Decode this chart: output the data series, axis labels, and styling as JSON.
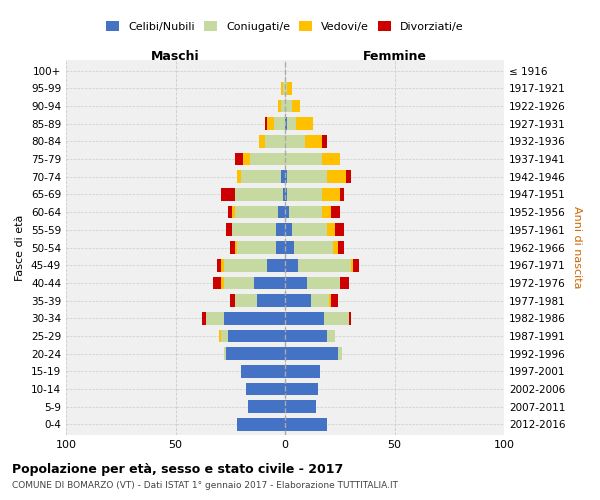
{
  "age_groups": [
    "0-4",
    "5-9",
    "10-14",
    "15-19",
    "20-24",
    "25-29",
    "30-34",
    "35-39",
    "40-44",
    "45-49",
    "50-54",
    "55-59",
    "60-64",
    "65-69",
    "70-74",
    "75-79",
    "80-84",
    "85-89",
    "90-94",
    "95-99",
    "100+"
  ],
  "birth_years": [
    "2012-2016",
    "2007-2011",
    "2002-2006",
    "1997-2001",
    "1992-1996",
    "1987-1991",
    "1982-1986",
    "1977-1981",
    "1972-1976",
    "1967-1971",
    "1962-1966",
    "1957-1961",
    "1952-1956",
    "1947-1951",
    "1942-1946",
    "1937-1941",
    "1932-1936",
    "1927-1931",
    "1922-1926",
    "1917-1921",
    "≤ 1916"
  ],
  "male": {
    "celibi": [
      22,
      17,
      18,
      20,
      27,
      26,
      28,
      13,
      14,
      8,
      4,
      4,
      3,
      1,
      2,
      0,
      0,
      0,
      0,
      0,
      0
    ],
    "coniugati": [
      0,
      0,
      0,
      0,
      1,
      3,
      8,
      10,
      14,
      20,
      18,
      20,
      20,
      22,
      18,
      16,
      9,
      5,
      2,
      1,
      0
    ],
    "vedovi": [
      0,
      0,
      0,
      0,
      0,
      1,
      0,
      0,
      1,
      1,
      1,
      0,
      1,
      0,
      2,
      3,
      3,
      3,
      1,
      1,
      0
    ],
    "divorziati": [
      0,
      0,
      0,
      0,
      0,
      0,
      2,
      2,
      4,
      2,
      2,
      3,
      2,
      6,
      0,
      4,
      0,
      1,
      0,
      0,
      0
    ]
  },
  "female": {
    "nubili": [
      19,
      14,
      15,
      16,
      24,
      19,
      18,
      12,
      10,
      6,
      4,
      3,
      2,
      1,
      1,
      0,
      0,
      1,
      0,
      0,
      0
    ],
    "coniugate": [
      0,
      0,
      0,
      0,
      2,
      4,
      11,
      8,
      15,
      24,
      18,
      16,
      15,
      16,
      18,
      17,
      9,
      4,
      3,
      1,
      0
    ],
    "vedove": [
      0,
      0,
      0,
      0,
      0,
      0,
      0,
      1,
      0,
      1,
      2,
      4,
      4,
      8,
      9,
      8,
      8,
      8,
      4,
      2,
      0
    ],
    "divorziate": [
      0,
      0,
      0,
      0,
      0,
      0,
      1,
      3,
      4,
      3,
      3,
      4,
      4,
      2,
      2,
      0,
      2,
      0,
      0,
      0,
      0
    ]
  },
  "colors": {
    "celibi": "#4472c4",
    "coniugati": "#c5d9a0",
    "vedovi": "#ffc000",
    "divorziati": "#cc0000"
  },
  "title": "Popolazione per età, sesso e stato civile - 2017",
  "subtitle": "COMUNE DI BOMARZO (VT) - Dati ISTAT 1° gennaio 2017 - Elaborazione TUTTITALIA.IT",
  "xlabel_left": "Maschi",
  "xlabel_right": "Femmine",
  "ylabel_left": "Fasce di età",
  "ylabel_right": "Anni di nascita",
  "legend_labels": [
    "Celibi/Nubili",
    "Coniugati/e",
    "Vedovi/e",
    "Divorziati/e"
  ],
  "xlim": 100,
  "bg_color": "#ffffff",
  "plot_bg": "#f0f0f0"
}
